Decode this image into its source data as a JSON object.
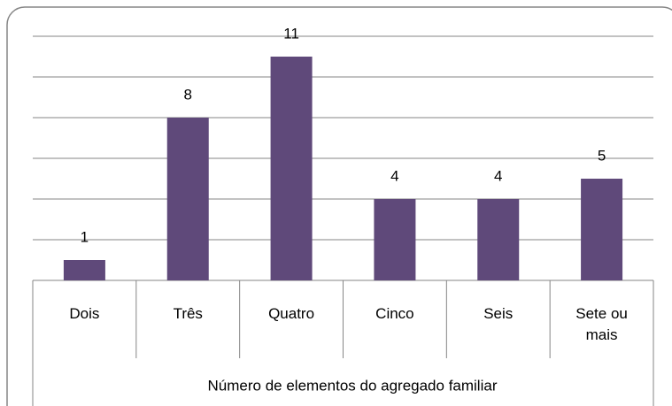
{
  "chart_data": {
    "type": "bar",
    "x_label": "Número de elementos do agregado familiar",
    "categories": [
      "Dois",
      "Três",
      "Quatro",
      "Cinco",
      "Seis",
      "Sete ou mais"
    ],
    "values": [
      1,
      8,
      11,
      4,
      4,
      5
    ],
    "color": "#5f497a",
    "ylim": [
      0,
      12
    ],
    "yticks": [
      0,
      2,
      4,
      6,
      8,
      10,
      12
    ],
    "grid": true
  }
}
